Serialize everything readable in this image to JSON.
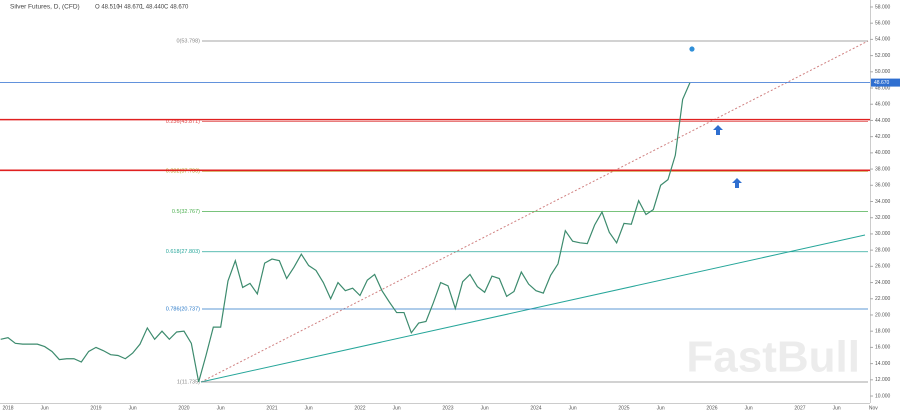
{
  "chart_data": {
    "type": "line",
    "title": "Silver Futures, D, (CFD)",
    "ohlc": [
      "O 48.510",
      "H 48.670",
      "L 48.440",
      "C 48.670"
    ],
    "watermark": "FastBull",
    "categories": [
      null,
      "2018",
      null,
      null,
      null,
      null,
      "Jun",
      null,
      null,
      null,
      null,
      null,
      null,
      "2019",
      null,
      null,
      null,
      null,
      "Jun",
      null,
      null,
      null,
      null,
      null,
      null,
      "2020",
      null,
      null,
      null,
      null,
      "Jun",
      null,
      null,
      null,
      null,
      null,
      null,
      "2021",
      null,
      null,
      null,
      null,
      "Jun",
      null,
      null,
      null,
      null,
      null,
      null,
      "2022",
      null,
      null,
      null,
      null,
      "Jun",
      null,
      null,
      null,
      null,
      null,
      null,
      "2023",
      null,
      null,
      null,
      null,
      "Jun",
      null,
      null,
      null,
      null,
      null,
      null,
      "2024",
      null,
      null,
      null,
      null,
      "Jun",
      null,
      null,
      null,
      null,
      null,
      null,
      "2025",
      null,
      null,
      null,
      null,
      "Jun",
      null,
      null,
      null,
      null,
      null,
      null,
      "2026",
      null,
      null,
      null,
      null,
      "Jun",
      null,
      null,
      null,
      null,
      null,
      null,
      "2027",
      null,
      null,
      null,
      null,
      "Jun",
      null,
      null,
      null,
      null,
      "Nov"
    ],
    "values": [
      17.0,
      17.2,
      16.5,
      16.4,
      16.4,
      16.4,
      16.1,
      15.5,
      14.5,
      14.6,
      14.6,
      14.2,
      15.5,
      16.0,
      15.6,
      15.1,
      15.0,
      14.6,
      15.3,
      16.4,
      18.4,
      17.0,
      18.0,
      17.0,
      17.9,
      18.0,
      16.5,
      11.735,
      15.0,
      18.5,
      18.5,
      24.2,
      26.7,
      23.4,
      23.9,
      22.6,
      26.4,
      26.9,
      26.7,
      24.5,
      25.9,
      27.5,
      26.1,
      25.5,
      24.0,
      22.0,
      24.0,
      23.0,
      23.3,
      22.4,
      24.3,
      25.0,
      23.0,
      21.6,
      20.3,
      20.3,
      17.8,
      19.0,
      19.2,
      21.5,
      24.0,
      23.6,
      20.8,
      24.1,
      25.0,
      23.5,
      22.8,
      24.8,
      24.5,
      22.3,
      22.9,
      25.3,
      23.8,
      23.0,
      22.7,
      24.9,
      26.3,
      30.4,
      29.1,
      28.9,
      28.8,
      31.1,
      32.7,
      30.2,
      28.9,
      31.3,
      31.2,
      34.1,
      32.4,
      33.0,
      36.0,
      36.7,
      39.7,
      46.6,
      48.67,
      null,
      null,
      null,
      null,
      null,
      null,
      null,
      null,
      null,
      null,
      null,
      null,
      null,
      null,
      null,
      null,
      null,
      null,
      null,
      null,
      null,
      null,
      null,
      null,
      null
    ],
    "color": "#3d8b6e",
    "ylim": [
      9.14,
      58.86
    ],
    "yticks": [
      {
        "value": 10,
        "label": "10.000"
      },
      {
        "value": 12,
        "label": "12.000"
      },
      {
        "value": 14,
        "label": "14.000"
      },
      {
        "value": 16,
        "label": "16.000"
      },
      {
        "value": 18,
        "label": "18.000"
      },
      {
        "value": 20,
        "label": "20.000"
      },
      {
        "value": 22,
        "label": "22.000"
      },
      {
        "value": 24,
        "label": "24.000"
      },
      {
        "value": 26,
        "label": "26.000"
      },
      {
        "value": 28,
        "label": "28.000"
      },
      {
        "value": 30,
        "label": "30.000"
      },
      {
        "value": 32,
        "label": "32.000"
      },
      {
        "value": 34,
        "label": "34.000"
      },
      {
        "value": 36,
        "label": "36.000"
      },
      {
        "value": 38,
        "label": "38.000"
      },
      {
        "value": 40,
        "label": "40.000"
      },
      {
        "value": 42,
        "label": "42.000"
      },
      {
        "value": 44,
        "label": "44.000"
      },
      {
        "value": 46,
        "label": "46.000"
      },
      {
        "value": 48,
        "label": "48.000"
      },
      {
        "value": 50,
        "label": "50.000"
      },
      {
        "value": 52,
        "label": "52.000"
      },
      {
        "value": 54,
        "label": "54.000"
      },
      {
        "value": 56,
        "label": "56.000"
      },
      {
        "value": 58,
        "label": "58.000"
      }
    ],
    "fib_levels": [
      {
        "value": 53.798,
        "label": "0(53.798)",
        "color": "#888888"
      },
      {
        "value": 43.871,
        "label": "0.236(43.871)",
        "color": "#e05050"
      },
      {
        "value": 37.73,
        "label": "0.382(37.730)",
        "color": "#b8a020"
      },
      {
        "value": 32.767,
        "label": "0.5(32.767)",
        "color": "#4caf50"
      },
      {
        "value": 27.803,
        "label": "0.618(27.803)",
        "color": "#26a69a"
      },
      {
        "value": 20.737,
        "label": "0.786(20.737)",
        "color": "#2979c8"
      },
      {
        "value": 11.735,
        "label": "1(11.735)",
        "color": "#888888"
      }
    ],
    "support_lines": [
      44.1,
      37.85
    ],
    "support_color": "#e02020",
    "last_price": {
      "value": 48.67,
      "label": "48.670",
      "color": "#2f6fd0"
    }
  }
}
